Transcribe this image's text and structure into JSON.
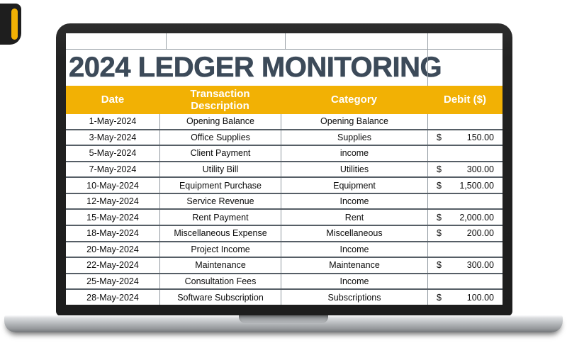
{
  "decoration": {
    "shape_color": "#1E1E1E",
    "accent_color": "#F2B104"
  },
  "sheet": {
    "title": "2024 LEDGER MONITORING",
    "columns": [
      {
        "key": "date",
        "label": "Date"
      },
      {
        "key": "description",
        "label": "Transaction Description"
      },
      {
        "key": "category",
        "label": "Category"
      },
      {
        "key": "debit",
        "label": "Debit ($)"
      }
    ],
    "rows": [
      {
        "date": "1-May-2024",
        "description": "Opening Balance",
        "category": "Opening Balance",
        "currency": "",
        "debit": ""
      },
      {
        "date": "3-May-2024",
        "description": "Office Supplies",
        "category": "Supplies",
        "currency": "$",
        "debit": "150.00"
      },
      {
        "date": "5-May-2024",
        "description": "Client Payment",
        "category": "income",
        "currency": "",
        "debit": ""
      },
      {
        "date": "7-May-2024",
        "description": "Utility Bill",
        "category": "Utilities",
        "currency": "$",
        "debit": "300.00"
      },
      {
        "date": "10-May-2024",
        "description": "Equipment Purchase",
        "category": "Equipment",
        "currency": "$",
        "debit": "1,500.00"
      },
      {
        "date": "12-May-2024",
        "description": "Service Revenue",
        "category": "Income",
        "currency": "",
        "debit": ""
      },
      {
        "date": "15-May-2024",
        "description": "Rent Payment",
        "category": "Rent",
        "currency": "$",
        "debit": "2,000.00"
      },
      {
        "date": "18-May-2024",
        "description": "Miscellaneous Expense",
        "category": "Miscellaneous",
        "currency": "$",
        "debit": "200.00"
      },
      {
        "date": "20-May-2024",
        "description": "Project Income",
        "category": "Income",
        "currency": "",
        "debit": ""
      },
      {
        "date": "22-May-2024",
        "description": "Maintenance",
        "category": "Maintenance",
        "currency": "$",
        "debit": "300.00"
      },
      {
        "date": "25-May-2024",
        "description": "Consultation Fees",
        "category": "Income",
        "currency": "",
        "debit": ""
      },
      {
        "date": "28-May-2024",
        "description": "Software Subscription",
        "category": "Subscriptions",
        "currency": "$",
        "debit": "100.00"
      }
    ],
    "colors": {
      "header_bg": "#F2B104",
      "header_text": "#FFFFFF",
      "title_color": "#3C4A59",
      "row_border": "#565E66",
      "col_border": "#8E979E"
    }
  }
}
